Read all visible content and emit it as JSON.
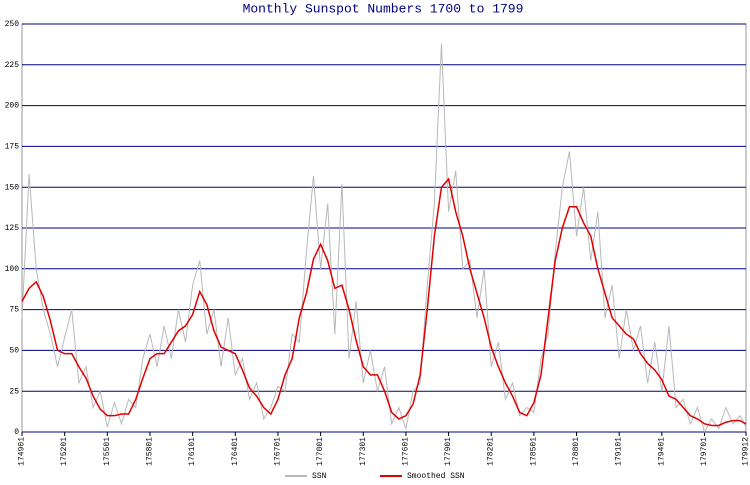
{
  "chart_data": {
    "type": "line",
    "title": "Monthly Sunspot Numbers 1700 to 1799",
    "x": [
      1749.0,
      1749.5,
      1750.0,
      1750.5,
      1751.0,
      1751.5,
      1752.0,
      1752.5,
      1753.0,
      1753.5,
      1754.0,
      1754.5,
      1755.0,
      1755.5,
      1756.0,
      1756.5,
      1757.0,
      1757.5,
      1758.0,
      1758.5,
      1759.0,
      1759.5,
      1760.0,
      1760.5,
      1761.0,
      1761.5,
      1762.0,
      1762.5,
      1763.0,
      1763.5,
      1764.0,
      1764.5,
      1765.0,
      1765.5,
      1766.0,
      1766.5,
      1767.0,
      1767.5,
      1768.0,
      1768.5,
      1769.0,
      1769.5,
      1770.0,
      1770.5,
      1771.0,
      1771.5,
      1772.0,
      1772.5,
      1773.0,
      1773.5,
      1774.0,
      1774.5,
      1775.0,
      1775.5,
      1776.0,
      1776.5,
      1777.0,
      1777.5,
      1778.0,
      1778.5,
      1779.0,
      1779.5,
      1780.0,
      1780.5,
      1781.0,
      1781.5,
      1782.0,
      1782.5,
      1783.0,
      1783.5,
      1784.0,
      1784.5,
      1785.0,
      1785.5,
      1786.0,
      1786.5,
      1787.0,
      1787.5,
      1788.0,
      1788.5,
      1789.0,
      1789.5,
      1790.0,
      1790.5,
      1791.0,
      1791.5,
      1792.0,
      1792.5,
      1793.0,
      1793.5,
      1794.0,
      1794.5,
      1795.0,
      1795.5,
      1796.0,
      1796.5,
      1797.0,
      1797.5,
      1798.0,
      1798.5,
      1799.0,
      1799.5,
      1799.917
    ],
    "series": [
      {
        "name": "SSN",
        "color": "#b8b8b8",
        "values": [
          70,
          158,
          100,
          75,
          60,
          40,
          58,
          75,
          30,
          40,
          15,
          25,
          3,
          18,
          5,
          20,
          15,
          45,
          60,
          40,
          65,
          45,
          75,
          55,
          90,
          105,
          60,
          75,
          40,
          70,
          35,
          45,
          20,
          30,
          8,
          15,
          28,
          25,
          60,
          55,
          110,
          157,
          100,
          140,
          60,
          152,
          45,
          80,
          30,
          50,
          25,
          40,
          5,
          15,
          2,
          25,
          30,
          90,
          140,
          238,
          135,
          160,
          100,
          105,
          70,
          100,
          40,
          55,
          20,
          30,
          10,
          15,
          12,
          45,
          60,
          110,
          150,
          172,
          120,
          150,
          105,
          135,
          70,
          90,
          45,
          75,
          50,
          65,
          30,
          55,
          25,
          65,
          15,
          20,
          5,
          15,
          0,
          8,
          2,
          15,
          5,
          10,
          3
        ]
      },
      {
        "name": "Smoothed SSN",
        "color": "#e00000",
        "values": [
          80,
          88,
          92,
          83,
          68,
          50,
          48,
          48,
          40,
          33,
          22,
          14,
          10,
          10,
          11,
          11,
          20,
          33,
          45,
          48,
          48,
          55,
          62,
          65,
          72,
          86,
          78,
          62,
          52,
          50,
          48,
          38,
          27,
          22,
          15,
          11,
          20,
          35,
          45,
          70,
          85,
          106,
          115,
          105,
          88,
          90,
          75,
          56,
          40,
          35,
          35,
          25,
          12,
          8,
          10,
          17,
          35,
          75,
          120,
          150,
          155,
          135,
          120,
          100,
          85,
          70,
          52,
          40,
          30,
          22,
          12,
          10,
          18,
          35,
          70,
          105,
          125,
          138,
          138,
          128,
          120,
          100,
          85,
          70,
          65,
          60,
          57,
          48,
          42,
          38,
          32,
          22,
          20,
          15,
          10,
          8,
          5,
          4,
          4,
          6,
          7,
          7,
          5
        ]
      }
    ],
    "xlim": [
      1749.0,
      1799.917
    ],
    "xticks": [
      {
        "value": 1749.0,
        "label": "174901"
      },
      {
        "value": 1752.0,
        "label": "175201"
      },
      {
        "value": 1755.0,
        "label": "175501"
      },
      {
        "value": 1758.0,
        "label": "175801"
      },
      {
        "value": 1761.0,
        "label": "176101"
      },
      {
        "value": 1764.0,
        "label": "176401"
      },
      {
        "value": 1767.0,
        "label": "176701"
      },
      {
        "value": 1770.0,
        "label": "177001"
      },
      {
        "value": 1773.0,
        "label": "177301"
      },
      {
        "value": 1776.0,
        "label": "177601"
      },
      {
        "value": 1779.0,
        "label": "177901"
      },
      {
        "value": 1782.0,
        "label": "178201"
      },
      {
        "value": 1785.0,
        "label": "178501"
      },
      {
        "value": 1788.0,
        "label": "178801"
      },
      {
        "value": 1791.0,
        "label": "179101"
      },
      {
        "value": 1794.0,
        "label": "179401"
      },
      {
        "value": 1797.0,
        "label": "179701"
      },
      {
        "value": 1799.917,
        "label": "179912"
      }
    ],
    "ylim": [
      0,
      250
    ],
    "yticks": [
      0,
      25,
      50,
      75,
      100,
      125,
      150,
      175,
      200,
      225,
      250
    ],
    "grid": true,
    "grid_color": "#000080"
  }
}
